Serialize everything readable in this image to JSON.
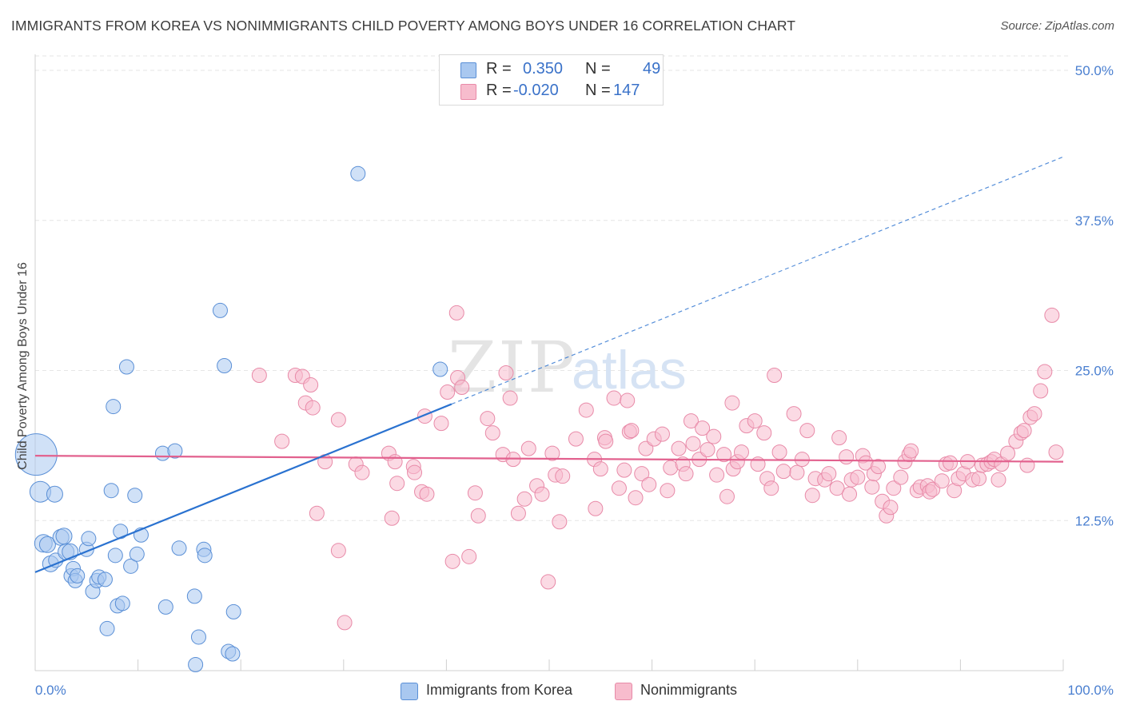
{
  "title": "IMMIGRANTS FROM KOREA VS NONIMMIGRANTS CHILD POVERTY AMONG BOYS UNDER 16 CORRELATION CHART",
  "source": "Source: ZipAtlas.com",
  "watermark": {
    "zip": "ZIP",
    "atlas": "atlas"
  },
  "legend": {
    "rows": [
      {
        "r_label": "R =",
        "r_value": "0.350",
        "n_label": "N =",
        "n_value": "49"
      },
      {
        "r_label": "R =",
        "r_value": "-0.020",
        "n_label": "N =",
        "n_value": "147"
      }
    ]
  },
  "bottom_legend": [
    "Immigrants from Korea",
    "Nonimmigrants"
  ],
  "colors": {
    "blue_fill": "#a9c8f0",
    "blue_stroke": "#5a8fd6",
    "blue_line": "#2a72d0",
    "pink_fill": "#f7bccd",
    "pink_stroke": "#e88aa8",
    "pink_line": "#e2618e",
    "tick_text": "#4a7fd0",
    "grid": "#e6e6e6"
  },
  "chart_data": {
    "type": "scatter",
    "title": "IMMIGRANTS FROM KOREA VS NONIMMIGRANTS CHILD POVERTY AMONG BOYS UNDER 16 CORRELATION CHART",
    "xlabel": "",
    "ylabel": "Child Poverty Among Boys Under 16",
    "xlim": [
      0,
      100
    ],
    "ylim": [
      0,
      51.2
    ],
    "x_tick_labels": [
      "0.0%",
      "100.0%"
    ],
    "y_ticks": [
      12.5,
      25.0,
      37.5,
      50.0
    ],
    "y_tick_labels": [
      "12.5%",
      "25.0%",
      "37.5%",
      "50.0%"
    ],
    "grid": true,
    "legend_position": "top-center",
    "series": [
      {
        "name": "Immigrants from Korea",
        "r": 0.35,
        "n": 49,
        "trend": {
          "x": [
            0,
            40.5
          ],
          "y": [
            8.2,
            22.2
          ]
        },
        "trend_extension": {
          "x": [
            40.5,
            100
          ],
          "y": [
            22.2,
            42.8
          ]
        },
        "points": [
          [
            0.1,
            18.0,
            26
          ],
          [
            0.5,
            14.9,
            13
          ],
          [
            0.8,
            10.6,
            11
          ],
          [
            1.2,
            10.5,
            10
          ],
          [
            1.5,
            8.9,
            10
          ],
          [
            1.9,
            14.7,
            10
          ],
          [
            2.0,
            9.2,
            9
          ],
          [
            2.5,
            11.1,
            10
          ],
          [
            2.8,
            11.2,
            10
          ],
          [
            3.0,
            9.9,
            10
          ],
          [
            3.4,
            9.9,
            10
          ],
          [
            3.5,
            7.9,
            9
          ],
          [
            3.7,
            8.5,
            9
          ],
          [
            3.9,
            7.5,
            9
          ],
          [
            4.1,
            7.9,
            9
          ],
          [
            5.0,
            10.1,
            9
          ],
          [
            5.2,
            11.0,
            9
          ],
          [
            5.6,
            6.6,
            9
          ],
          [
            6.0,
            7.5,
            9
          ],
          [
            6.2,
            7.8,
            9
          ],
          [
            6.8,
            7.6,
            9
          ],
          [
            7.0,
            3.5,
            9
          ],
          [
            7.4,
            15.0,
            9
          ],
          [
            7.6,
            22.0,
            9
          ],
          [
            7.8,
            9.6,
            9
          ],
          [
            8.0,
            5.4,
            9
          ],
          [
            8.3,
            11.6,
            9
          ],
          [
            8.5,
            5.6,
            9
          ],
          [
            8.9,
            25.3,
            9
          ],
          [
            9.3,
            8.7,
            9
          ],
          [
            9.7,
            14.6,
            9
          ],
          [
            9.9,
            9.7,
            9
          ],
          [
            10.3,
            11.3,
            9
          ],
          [
            12.4,
            18.1,
            9
          ],
          [
            12.7,
            5.3,
            9
          ],
          [
            13.6,
            18.3,
            9
          ],
          [
            14.0,
            10.2,
            9
          ],
          [
            15.5,
            6.2,
            9
          ],
          [
            15.6,
            0.5,
            9
          ],
          [
            15.9,
            2.8,
            9
          ],
          [
            16.4,
            10.1,
            9
          ],
          [
            16.5,
            9.6,
            9
          ],
          [
            18.0,
            30.0,
            9
          ],
          [
            18.4,
            25.4,
            9
          ],
          [
            18.8,
            1.6,
            9
          ],
          [
            19.2,
            1.4,
            9
          ],
          [
            19.3,
            4.9,
            9
          ],
          [
            31.4,
            41.4,
            9
          ],
          [
            39.4,
            25.1,
            9
          ]
        ]
      },
      {
        "name": "Nonimmigrants",
        "r": -0.02,
        "n": 147,
        "trend": {
          "x": [
            0,
            100
          ],
          "y": [
            17.9,
            17.4
          ]
        },
        "points": [
          [
            21.8,
            24.6,
            9
          ],
          [
            24.0,
            19.1,
            9
          ],
          [
            25.3,
            24.6,
            9
          ],
          [
            26.0,
            24.5,
            9
          ],
          [
            26.3,
            22.3,
            9
          ],
          [
            26.8,
            23.8,
            9
          ],
          [
            27.0,
            21.9,
            9
          ],
          [
            27.4,
            13.1,
            9
          ],
          [
            28.2,
            17.4,
            9
          ],
          [
            29.5,
            20.9,
            9
          ],
          [
            29.5,
            10.0,
            9
          ],
          [
            30.1,
            4.0,
            9
          ],
          [
            31.2,
            17.2,
            9
          ],
          [
            31.8,
            16.5,
            9
          ],
          [
            34.4,
            18.1,
            9
          ],
          [
            34.7,
            12.7,
            9
          ],
          [
            35.0,
            17.4,
            9
          ],
          [
            35.2,
            15.6,
            9
          ],
          [
            36.8,
            17.0,
            9
          ],
          [
            36.9,
            16.5,
            9
          ],
          [
            37.6,
            14.9,
            9
          ],
          [
            37.9,
            21.2,
            9
          ],
          [
            38.1,
            14.7,
            9
          ],
          [
            39.5,
            20.6,
            9
          ],
          [
            40.1,
            23.2,
            9
          ],
          [
            40.6,
            9.1,
            9
          ],
          [
            41.0,
            29.8,
            9
          ],
          [
            41.1,
            24.4,
            9
          ],
          [
            41.5,
            23.6,
            9
          ],
          [
            42.2,
            9.5,
            9
          ],
          [
            42.8,
            14.8,
            9
          ],
          [
            43.1,
            12.9,
            9
          ],
          [
            44.0,
            21.0,
            9
          ],
          [
            44.5,
            19.8,
            9
          ],
          [
            45.5,
            18.0,
            9
          ],
          [
            45.8,
            24.8,
            9
          ],
          [
            46.2,
            22.7,
            9
          ],
          [
            46.5,
            17.6,
            9
          ],
          [
            47.0,
            13.1,
            9
          ],
          [
            47.6,
            14.3,
            9
          ],
          [
            48.0,
            18.5,
            9
          ],
          [
            48.8,
            15.4,
            9
          ],
          [
            49.3,
            14.7,
            9
          ],
          [
            49.9,
            7.4,
            9
          ],
          [
            50.3,
            18.1,
            9
          ],
          [
            50.6,
            16.3,
            9
          ],
          [
            51.0,
            12.4,
            9
          ],
          [
            51.3,
            16.2,
            9
          ],
          [
            52.6,
            19.3,
            9
          ],
          [
            53.6,
            21.7,
            9
          ],
          [
            54.4,
            17.6,
            9
          ],
          [
            54.5,
            13.5,
            9
          ],
          [
            55.0,
            16.8,
            9
          ],
          [
            55.4,
            19.4,
            9
          ],
          [
            55.5,
            19.1,
            9
          ],
          [
            56.3,
            22.7,
            9
          ],
          [
            56.8,
            15.2,
            9
          ],
          [
            57.3,
            16.7,
            9
          ],
          [
            57.6,
            22.5,
            9
          ],
          [
            57.8,
            19.9,
            9
          ],
          [
            58.0,
            20.0,
            9
          ],
          [
            58.4,
            14.4,
            9
          ],
          [
            59.0,
            16.4,
            9
          ],
          [
            59.4,
            18.5,
            9
          ],
          [
            59.7,
            15.5,
            9
          ],
          [
            60.2,
            19.3,
            9
          ],
          [
            61.0,
            19.7,
            9
          ],
          [
            61.5,
            15.0,
            9
          ],
          [
            61.8,
            16.9,
            9
          ],
          [
            62.6,
            18.5,
            9
          ],
          [
            63.0,
            17.2,
            9
          ],
          [
            63.3,
            16.4,
            9
          ],
          [
            63.8,
            20.8,
            9
          ],
          [
            64.0,
            18.9,
            9
          ],
          [
            64.6,
            17.6,
            9
          ],
          [
            64.9,
            20.2,
            9
          ],
          [
            65.4,
            18.4,
            9
          ],
          [
            66.0,
            19.5,
            9
          ],
          [
            66.3,
            16.3,
            9
          ],
          [
            67.0,
            18.0,
            9
          ],
          [
            67.3,
            14.5,
            9
          ],
          [
            67.8,
            22.3,
            9
          ],
          [
            67.9,
            16.8,
            9
          ],
          [
            68.3,
            17.4,
            9
          ],
          [
            68.7,
            18.2,
            9
          ],
          [
            69.2,
            20.4,
            9
          ],
          [
            70.0,
            20.8,
            9
          ],
          [
            70.3,
            17.2,
            9
          ],
          [
            70.9,
            19.8,
            9
          ],
          [
            71.2,
            16.0,
            9
          ],
          [
            71.6,
            15.2,
            9
          ],
          [
            71.9,
            24.6,
            9
          ],
          [
            72.4,
            18.2,
            9
          ],
          [
            72.8,
            16.6,
            9
          ],
          [
            73.8,
            21.4,
            9
          ],
          [
            74.1,
            16.5,
            9
          ],
          [
            74.6,
            17.6,
            9
          ],
          [
            75.1,
            20.0,
            9
          ],
          [
            75.6,
            14.6,
            9
          ],
          [
            75.9,
            16.0,
            9
          ],
          [
            76.8,
            15.9,
            9
          ],
          [
            77.2,
            16.4,
            9
          ],
          [
            78.0,
            15.2,
            9
          ],
          [
            78.2,
            19.4,
            9
          ],
          [
            78.9,
            17.8,
            9
          ],
          [
            79.2,
            14.7,
            9
          ],
          [
            79.4,
            15.9,
            9
          ],
          [
            80.0,
            16.1,
            9
          ],
          [
            80.5,
            17.9,
            9
          ],
          [
            80.8,
            17.3,
            9
          ],
          [
            81.4,
            15.3,
            9
          ],
          [
            81.6,
            16.4,
            9
          ],
          [
            82.0,
            17.0,
            9
          ],
          [
            82.4,
            14.1,
            9
          ],
          [
            82.8,
            12.9,
            9
          ],
          [
            83.2,
            13.6,
            9
          ],
          [
            83.5,
            15.2,
            9
          ],
          [
            84.2,
            16.1,
            9
          ],
          [
            84.6,
            17.4,
            9
          ],
          [
            85.0,
            18.0,
            9
          ],
          [
            85.2,
            18.3,
            9
          ],
          [
            85.8,
            15.0,
            9
          ],
          [
            86.1,
            15.3,
            9
          ],
          [
            86.8,
            15.4,
            9
          ],
          [
            87.0,
            14.9,
            9
          ],
          [
            87.3,
            15.1,
            9
          ],
          [
            88.2,
            15.8,
            9
          ],
          [
            88.6,
            17.2,
            9
          ],
          [
            89.0,
            17.3,
            9
          ],
          [
            89.4,
            15.0,
            9
          ],
          [
            89.8,
            16.0,
            9
          ],
          [
            90.3,
            16.4,
            9
          ],
          [
            90.7,
            17.4,
            9
          ],
          [
            91.2,
            15.9,
            9
          ],
          [
            91.8,
            16.0,
            9
          ],
          [
            92.1,
            17.1,
            9
          ],
          [
            92.6,
            17.2,
            9
          ],
          [
            93.0,
            17.4,
            9
          ],
          [
            93.3,
            17.6,
            9
          ],
          [
            93.7,
            15.9,
            9
          ],
          [
            94.0,
            17.2,
            9
          ],
          [
            94.6,
            18.1,
            9
          ],
          [
            95.4,
            19.1,
            9
          ],
          [
            95.9,
            19.8,
            9
          ],
          [
            96.2,
            20.0,
            9
          ],
          [
            96.8,
            21.1,
            9
          ],
          [
            97.2,
            21.4,
            9
          ],
          [
            97.8,
            23.3,
            9
          ],
          [
            98.2,
            24.9,
            9
          ],
          [
            98.9,
            29.6,
            9
          ],
          [
            99.3,
            18.2,
            9
          ],
          [
            96.5,
            17.1,
            9
          ]
        ]
      }
    ]
  }
}
